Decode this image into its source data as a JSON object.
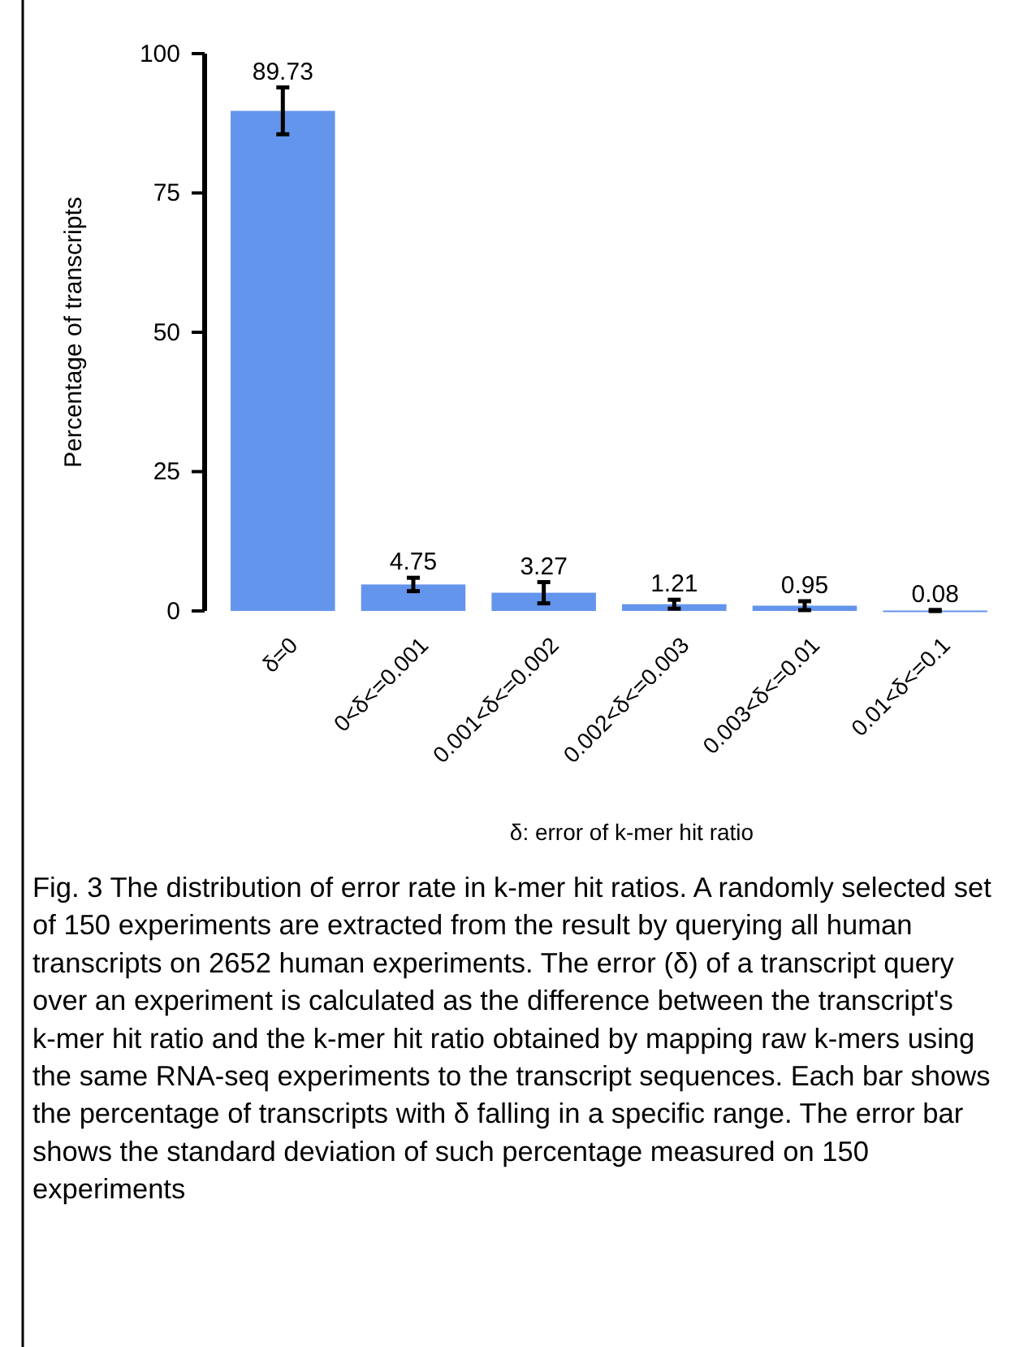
{
  "chart_data": {
    "type": "bar",
    "ylabel": "Percentage of transcripts",
    "xlabel": "δ: error of k-mer hit ratio",
    "categories": [
      "δ=0",
      "0<δ<=0.001",
      "0.001<δ<=0.002",
      "0.002<δ<=0.003",
      "0.003<δ<=0.01",
      "0.01<δ<=0.1"
    ],
    "values": [
      89.73,
      4.75,
      3.27,
      1.21,
      0.95,
      0.08
    ],
    "errors": [
      4.2,
      1.2,
      1.9,
      0.8,
      0.8,
      0.1
    ],
    "color": "#6495ed",
    "data_labels": true,
    "ylim": [
      0,
      100
    ],
    "yticks": [
      0,
      25,
      50,
      75,
      100
    ],
    "annotations": [
      "Fig. 3 The distribution of error rate in k-mer hit ratios. A randomly selected set of 150 experiments are extracted from the result by querying all human transcripts on 2652 human experiments. The error (δ) of a transcript query over an experiment is calculated as the difference between the transcript's k-mer hit ratio and the k-mer hit ratio obtained by mapping raw k-mers using the same RNA-seq experiments to the transcript sequences. Each bar shows the percentage of transcripts with δ falling in a specific range. The error bar shows the standard deviation of such percentage measured on 150 experiments"
    ]
  }
}
